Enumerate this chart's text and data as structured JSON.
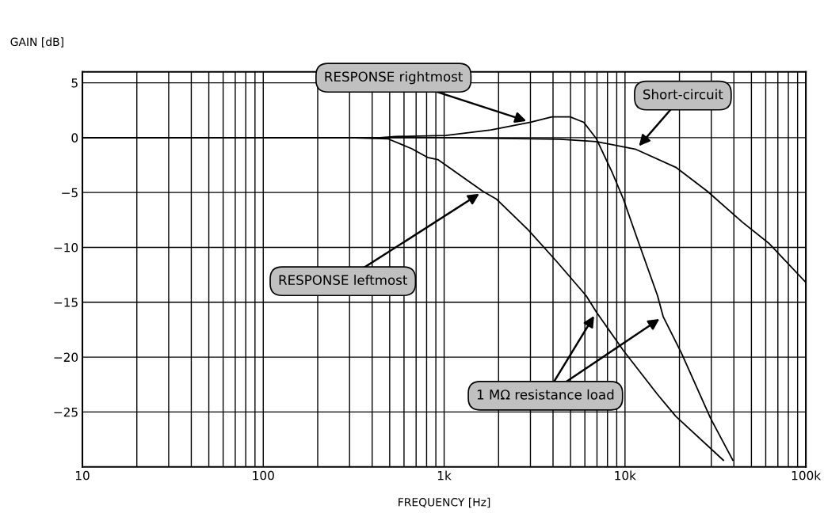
{
  "chart_data": {
    "type": "line",
    "xlabel": "FREQUENCY [Hz]",
    "ylabel": "GAIN [dB]",
    "log": "x",
    "grid": true,
    "marker": "none",
    "line_style": "solid",
    "xlim": [
      10,
      100000
    ],
    "ylim": [
      -30,
      6
    ],
    "xticks": [
      10,
      100,
      {
        "value": 1000,
        "label": "1k"
      },
      {
        "value": 10000,
        "label": "10k"
      },
      {
        "value": 100000,
        "label": "100k"
      }
    ],
    "yticks": [
      5,
      0,
      {
        "value": -5,
        "label": "−5"
      },
      {
        "value": -10,
        "label": "−10"
      },
      {
        "value": -15,
        "label": "−15"
      },
      {
        "value": -20,
        "label": "−20"
      },
      {
        "value": -25,
        "label": "−25"
      }
    ],
    "series": [
      {
        "color": "#000000",
        "x": [
          10,
          100,
          258,
          295,
          488,
          661,
          809,
          923,
          1640,
          1946,
          2917,
          4197,
          6095,
          6950,
          9795,
          15130,
          19090,
          34990
        ],
        "values": [
          0,
          0,
          0,
          0,
          -0.1,
          -1.0,
          -1.8,
          -2.0,
          -4.9,
          -5.6,
          -8.4,
          -11.3,
          -14.4,
          -15.9,
          -19.4,
          -23.4,
          -25.4,
          -29.4
        ]
      },
      {
        "color": "#000000",
        "x": [
          10,
          100,
          441,
          540,
          1020,
          1815,
          3006,
          3946,
          4977,
          5916,
          6950,
          8511,
          9795,
          11510,
          15130,
          16250,
          20480,
          29760,
          39460
        ],
        "values": [
          0,
          0,
          0,
          0.1,
          0.2,
          0.7,
          1.4,
          1.9,
          1.9,
          1.4,
          -0.1,
          -3.2,
          -5.6,
          -8.9,
          -14.4,
          -16.3,
          -19.6,
          -25.6,
          -29.4
        ]
      },
      {
        "color": "#000000",
        "x": [
          10,
          100,
          1000,
          4366,
          6950,
          11510,
          19090,
          28580,
          44570,
          62200,
          100000
        ],
        "values": [
          0,
          0,
          0,
          -0.14,
          -0.36,
          -1.07,
          -2.7,
          -4.9,
          -7.7,
          -9.6,
          -13.2
        ]
      }
    ],
    "annotations": [
      {
        "text": "RESPONSE rightmost",
        "x": 3006,
        "y": 1.4
      },
      {
        "text": "Short-circuit",
        "x": 11510,
        "y": -1.07
      },
      {
        "text": "RESPONSE leftmost",
        "x": 1640,
        "y": -4.9
      },
      {
        "text": "1 MΩ resistance load",
        "x": 16250,
        "y": -16.3
      }
    ]
  }
}
